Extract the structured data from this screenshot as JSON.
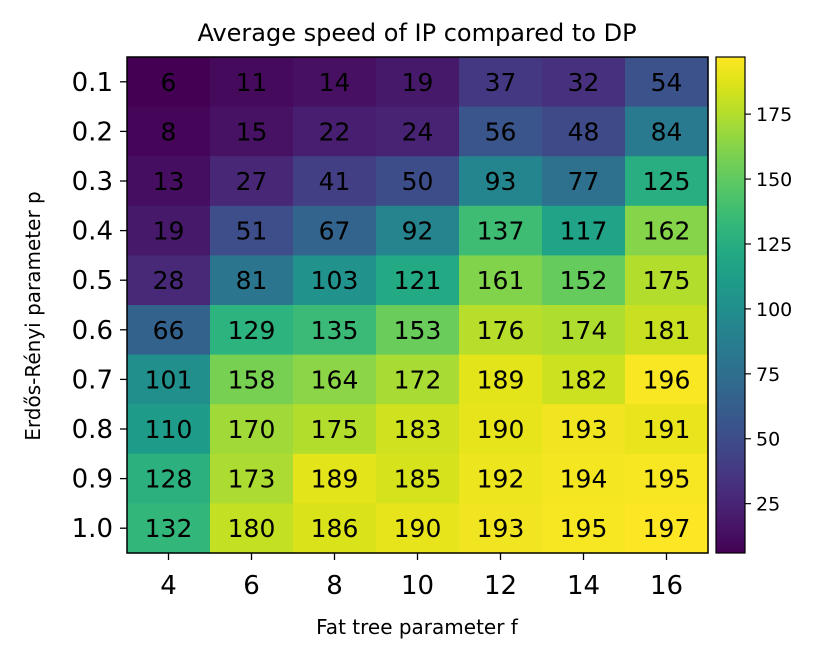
{
  "chart_data": {
    "type": "heatmap",
    "title": "Average speed of IP compared to DP",
    "xlabel": "Fat tree parameter f",
    "ylabel": "Erdős-Rényi parameter p",
    "x_categories": [
      "4",
      "6",
      "8",
      "10",
      "12",
      "14",
      "16"
    ],
    "y_categories": [
      "0.1",
      "0.2",
      "0.3",
      "0.4",
      "0.5",
      "0.6",
      "0.7",
      "0.8",
      "0.9",
      "1.0"
    ],
    "values": [
      [
        6,
        11,
        14,
        19,
        37,
        32,
        54
      ],
      [
        8,
        15,
        22,
        24,
        56,
        48,
        84
      ],
      [
        13,
        27,
        41,
        50,
        93,
        77,
        125
      ],
      [
        19,
        51,
        67,
        92,
        137,
        117,
        162
      ],
      [
        28,
        81,
        103,
        121,
        161,
        152,
        175
      ],
      [
        66,
        129,
        135,
        153,
        176,
        174,
        181
      ],
      [
        101,
        158,
        164,
        172,
        189,
        182,
        196
      ],
      [
        110,
        170,
        175,
        183,
        190,
        193,
        191
      ],
      [
        128,
        173,
        189,
        185,
        192,
        194,
        195
      ],
      [
        132,
        180,
        186,
        190,
        193,
        195,
        197
      ]
    ],
    "colormap": "viridis",
    "color_range": [
      6,
      197
    ],
    "colorbar_ticks": [
      "25",
      "50",
      "75",
      "100",
      "125",
      "150",
      "175"
    ],
    "annotation_colors": {
      "dark": "#000000",
      "light": "#ffffff"
    },
    "grid": false
  }
}
